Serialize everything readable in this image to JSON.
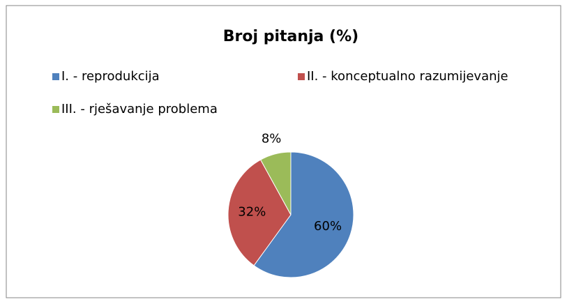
{
  "chart_data": {
    "type": "pie",
    "title": "Broj pitanja (%)",
    "categories": [
      "I. - reprodukcija",
      "II. - konceptualno razumijevanje",
      "III. - rješavanje problema"
    ],
    "values": [
      60,
      32,
      8
    ],
    "value_labels": [
      "60%",
      "32%",
      "8%"
    ],
    "colors": [
      "#4f81bd",
      "#c0504d",
      "#9bbb59"
    ],
    "legend": "top"
  }
}
